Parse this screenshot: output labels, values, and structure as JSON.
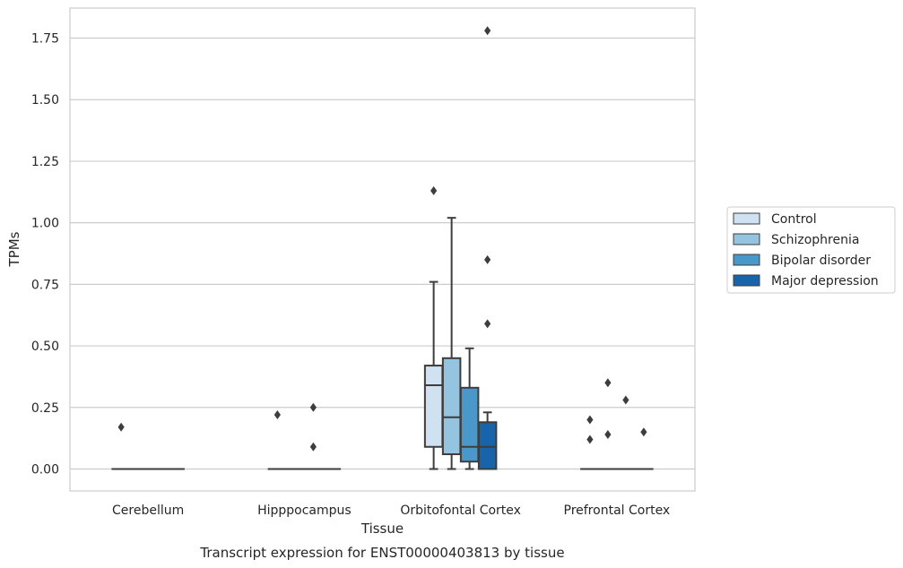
{
  "chart_data": {
    "type": "box",
    "title": "",
    "caption": "Transcript expression for ENST00000403813 by tissue",
    "xlabel": "Tissue",
    "ylabel": "TPMs",
    "ylim": [
      -0.09,
      1.87
    ],
    "yticks": [
      0.0,
      0.25,
      0.5,
      0.75,
      1.0,
      1.25,
      1.5,
      1.75
    ],
    "ytick_labels": [
      "0.00",
      "0.25",
      "0.50",
      "0.75",
      "1.00",
      "1.25",
      "1.50",
      "1.75"
    ],
    "grid": "horizontal",
    "legend_placement": "right",
    "categories": [
      "Cerebellum",
      "Hipppocampus",
      "Orbitofontal Cortex",
      "Prefrontal Cortex"
    ],
    "series": [
      {
        "name": "Control",
        "color": "#d0e1f2",
        "boxes": [
          {
            "whislo": 0,
            "q1": 0,
            "med": 0,
            "q3": 0,
            "whishi": 0,
            "fliers": [
              0.17
            ]
          },
          {
            "whislo": 0,
            "q1": 0,
            "med": 0,
            "q3": 0,
            "whishi": 0,
            "fliers": [
              0.22
            ]
          },
          {
            "whislo": 0,
            "q1": 0.09,
            "med": 0.34,
            "q3": 0.42,
            "whishi": 0.76,
            "fliers": [
              1.13
            ]
          },
          {
            "whislo": 0,
            "q1": 0,
            "med": 0,
            "q3": 0,
            "whishi": 0,
            "fliers": [
              0.2,
              0.12
            ]
          }
        ]
      },
      {
        "name": "Schizophrenia",
        "color": "#94c4df",
        "boxes": [
          {
            "whislo": 0,
            "q1": 0,
            "med": 0,
            "q3": 0,
            "whishi": 0,
            "fliers": []
          },
          {
            "whislo": 0,
            "q1": 0,
            "med": 0,
            "q3": 0,
            "whishi": 0,
            "fliers": []
          },
          {
            "whislo": 0,
            "q1": 0.06,
            "med": 0.21,
            "q3": 0.45,
            "whishi": 1.02,
            "fliers": []
          },
          {
            "whislo": 0,
            "q1": 0,
            "med": 0,
            "q3": 0,
            "whishi": 0,
            "fliers": [
              0.35,
              0.14
            ]
          }
        ]
      },
      {
        "name": "Bipolar disorder",
        "color": "#4a98c9",
        "boxes": [
          {
            "whislo": 0,
            "q1": 0,
            "med": 0,
            "q3": 0,
            "whishi": 0,
            "fliers": []
          },
          {
            "whislo": 0,
            "q1": 0,
            "med": 0,
            "q3": 0,
            "whishi": 0,
            "fliers": [
              0.25,
              0.09
            ]
          },
          {
            "whislo": 0,
            "q1": 0.03,
            "med": 0.09,
            "q3": 0.33,
            "whishi": 0.49,
            "fliers": []
          },
          {
            "whislo": 0,
            "q1": 0,
            "med": 0,
            "q3": 0,
            "whishi": 0,
            "fliers": [
              0.28
            ]
          }
        ]
      },
      {
        "name": "Major depression",
        "color": "#1764ab",
        "boxes": [
          {
            "whislo": 0,
            "q1": 0,
            "med": 0,
            "q3": 0,
            "whishi": 0,
            "fliers": []
          },
          {
            "whislo": 0,
            "q1": 0,
            "med": 0,
            "q3": 0,
            "whishi": 0,
            "fliers": []
          },
          {
            "whislo": 0,
            "q1": 0,
            "med": 0.09,
            "q3": 0.19,
            "whishi": 0.23,
            "fliers": [
              1.78,
              0.85,
              0.59
            ]
          },
          {
            "whislo": 0,
            "q1": 0,
            "med": 0,
            "q3": 0,
            "whishi": 0,
            "fliers": [
              0.15
            ]
          }
        ]
      }
    ]
  }
}
